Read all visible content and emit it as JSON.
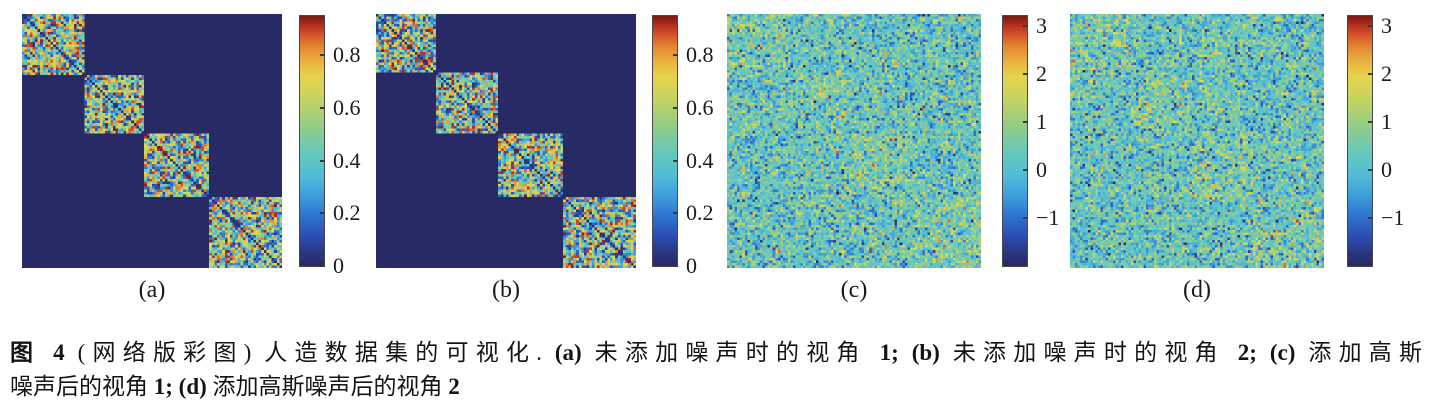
{
  "figure": {
    "caption": {
      "lines": [
        [
          {
            "text": "图 4",
            "bold": true
          },
          {
            "text": "  (网络版彩图) 人造数据集的可视化. ",
            "bold": false
          },
          {
            "text": "(a)",
            "bold": true
          },
          {
            "text": " 未添加噪声时的视角 ",
            "bold": false
          },
          {
            "text": "1;",
            "bold": true
          },
          {
            "text": " ",
            "bold": false
          },
          {
            "text": "(b)",
            "bold": true
          },
          {
            "text": " 未添加噪声时的视角 ",
            "bold": false
          },
          {
            "text": "2;",
            "bold": true
          },
          {
            "text": " ",
            "bold": false
          },
          {
            "text": "(c)",
            "bold": true
          },
          {
            "text": " 添加高斯",
            "bold": false
          }
        ],
        [
          {
            "text": "噪声后的视角 ",
            "bold": false
          },
          {
            "text": "1;",
            "bold": true
          },
          {
            "text": " ",
            "bold": false
          },
          {
            "text": "(d)",
            "bold": true
          },
          {
            "text": " 添加高斯噪声后的视角 ",
            "bold": false
          },
          {
            "text": "2",
            "bold": true
          }
        ]
      ]
    }
  },
  "chart_data": {
    "type": "heatmap",
    "colormap": {
      "name": "jet (printed)",
      "stops": [
        {
          "pos": 0.0,
          "color": "#282a66"
        },
        {
          "pos": 0.05,
          "color": "#2a3780"
        },
        {
          "pos": 0.12,
          "color": "#2c4fb5"
        },
        {
          "pos": 0.2,
          "color": "#2f74d2"
        },
        {
          "pos": 0.28,
          "color": "#3f9fdc"
        },
        {
          "pos": 0.36,
          "color": "#52bcd8"
        },
        {
          "pos": 0.44,
          "color": "#63c8c2"
        },
        {
          "pos": 0.52,
          "color": "#82cb9c"
        },
        {
          "pos": 0.6,
          "color": "#a5cf79"
        },
        {
          "pos": 0.68,
          "color": "#c9d55e"
        },
        {
          "pos": 0.76,
          "color": "#e7d44c"
        },
        {
          "pos": 0.82,
          "color": "#eab33f"
        },
        {
          "pos": 0.88,
          "color": "#e58534"
        },
        {
          "pos": 0.93,
          "color": "#d4512a"
        },
        {
          "pos": 0.97,
          "color": "#b02c1e"
        },
        {
          "pos": 1.0,
          "color": "#7c1a12"
        }
      ]
    },
    "panels": [
      {
        "id": "a",
        "label": "(a)",
        "description": "View 1 without added noise: block-diagonal matrix, 4 random blocks on dark-blue background, dark main diagonal",
        "structure": "block-diagonal",
        "grid": 100,
        "blocks": [
          24,
          23,
          25,
          28
        ],
        "seed": 7,
        "background_value": 0.0,
        "diagonal_value": 0.02,
        "block_value_range": [
          0.04,
          0.95
        ],
        "colorbar": {
          "vmin": 0,
          "vmax": 0.95,
          "ticks": [
            0,
            0.2,
            0.4,
            0.6,
            0.8
          ],
          "tick_labels": [
            "0",
            "0.2",
            "0.4",
            "0.6",
            "0.8"
          ]
        }
      },
      {
        "id": "b",
        "label": "(b)",
        "description": "View 2 without added noise: block-diagonal matrix, 4 random blocks on dark-blue background, dark main diagonal",
        "structure": "block-diagonal",
        "grid": 100,
        "blocks": [
          23,
          24,
          25,
          28
        ],
        "seed": 13,
        "background_value": 0.0,
        "diagonal_value": 0.02,
        "block_value_range": [
          0.04,
          0.95
        ],
        "colorbar": {
          "vmin": 0,
          "vmax": 0.95,
          "ticks": [
            0,
            0.2,
            0.4,
            0.6,
            0.8
          ],
          "tick_labels": [
            "0",
            "0.2",
            "0.4",
            "0.6",
            "0.8"
          ]
        }
      },
      {
        "id": "c",
        "label": "(c)",
        "description": "View 1 after adding Gaussian noise: dense noise field, faint warm block structure along diagonal",
        "structure": "noisy-block",
        "grid": 100,
        "blocks": [
          24,
          23,
          25,
          28
        ],
        "seed": 21,
        "background_base": 0.25,
        "diagonal_base": 0.0,
        "block_value_range": [
          0.0,
          1.0
        ],
        "noise_sigma": 0.75,
        "colorbar": {
          "vmin": -2.0,
          "vmax": 3.2,
          "ticks": [
            3,
            2,
            1,
            0,
            -1
          ],
          "tick_labels": [
            "3",
            "2",
            "1",
            "0",
            "−1"
          ]
        }
      },
      {
        "id": "d",
        "label": "(d)",
        "description": "View 2 after adding Gaussian noise: dense noise field, faint warm block structure along diagonal",
        "structure": "noisy-block",
        "grid": 100,
        "blocks": [
          23,
          24,
          25,
          28
        ],
        "seed": 42,
        "background_base": 0.25,
        "diagonal_base": 0.0,
        "block_value_range": [
          0.0,
          1.0
        ],
        "noise_sigma": 0.75,
        "colorbar": {
          "vmin": -2.0,
          "vmax": 3.2,
          "ticks": [
            3,
            2,
            1,
            0,
            -1
          ],
          "tick_labels": [
            "3",
            "2",
            "1",
            "0",
            "−1"
          ]
        }
      }
    ]
  }
}
